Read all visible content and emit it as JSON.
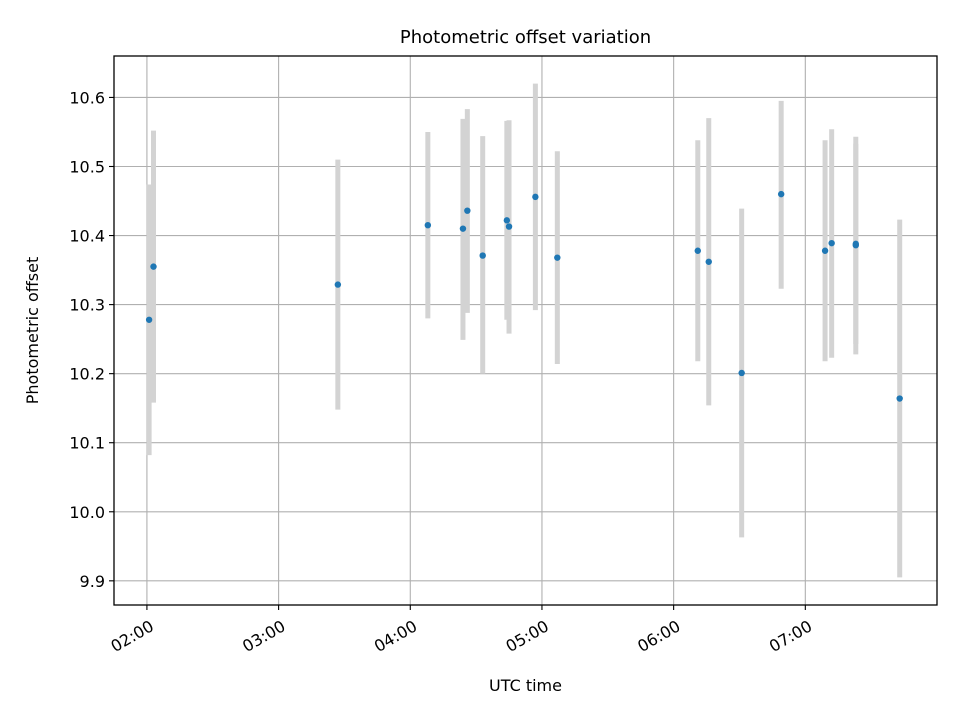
{
  "chart_data": {
    "type": "scatter",
    "title": "Photometric offset variation",
    "xlabel": "UTC time",
    "ylabel": "Photometric offset",
    "x_axis_kind": "time",
    "xlim": [
      "01:45",
      "08:00"
    ],
    "ylim": [
      9.865,
      10.66
    ],
    "xticks": [
      "02:00",
      "03:00",
      "04:00",
      "05:00",
      "06:00",
      "07:00"
    ],
    "yticks": [
      "9.9",
      "10.0",
      "10.1",
      "10.2",
      "10.3",
      "10.4",
      "10.5",
      "10.6"
    ],
    "grid": true,
    "colors": {
      "point": "#1f77b4",
      "errorbar": "#d3d3d3"
    },
    "series": [
      {
        "marker": "dot",
        "points": [
          {
            "x": "02:01",
            "y": 10.278,
            "yerr": [
              10.082,
              10.474
            ]
          },
          {
            "x": "02:03",
            "y": 10.355,
            "yerr": [
              10.158,
              10.552
            ]
          },
          {
            "x": "03:27",
            "y": 10.329,
            "yerr": [
              10.148,
              10.51
            ]
          },
          {
            "x": "04:08",
            "y": 10.415,
            "yerr": [
              10.28,
              10.55
            ]
          },
          {
            "x": "04:24",
            "y": 10.41,
            "yerr": [
              10.249,
              10.569
            ]
          },
          {
            "x": "04:26",
            "y": 10.436,
            "yerr": [
              10.288,
              10.583
            ]
          },
          {
            "x": "04:33",
            "y": 10.371,
            "yerr": [
              10.2,
              10.544
            ]
          },
          {
            "x": "04:44",
            "y": 10.422,
            "yerr": [
              10.278,
              10.566
            ]
          },
          {
            "x": "04:45",
            "y": 10.413,
            "yerr": [
              10.258,
              10.567
            ]
          },
          {
            "x": "04:57",
            "y": 10.456,
            "yerr": [
              10.292,
              10.62
            ]
          },
          {
            "x": "05:07",
            "y": 10.368,
            "yerr": [
              10.214,
              10.522
            ]
          },
          {
            "x": "06:11",
            "y": 10.378,
            "yerr": [
              10.218,
              10.538
            ]
          },
          {
            "x": "06:16",
            "y": 10.362,
            "yerr": [
              10.154,
              10.57
            ]
          },
          {
            "x": "06:31",
            "y": 10.201,
            "yerr": [
              9.963,
              10.439
            ]
          },
          {
            "x": "06:49",
            "y": 10.46,
            "yerr": [
              10.323,
              10.595
            ]
          },
          {
            "x": "07:09",
            "y": 10.378,
            "yerr": [
              10.218,
              10.538
            ]
          },
          {
            "x": "07:12",
            "y": 10.389,
            "yerr": [
              10.223,
              10.554
            ]
          },
          {
            "x": "07:23",
            "y": 10.386,
            "yerr": [
              10.228,
              10.543
            ]
          },
          {
            "x": "07:23",
            "y": 10.388,
            "yerr": [
              10.243,
              10.533
            ]
          },
          {
            "x": "07:43",
            "y": 10.164,
            "yerr": [
              9.905,
              10.423
            ]
          }
        ]
      }
    ]
  }
}
